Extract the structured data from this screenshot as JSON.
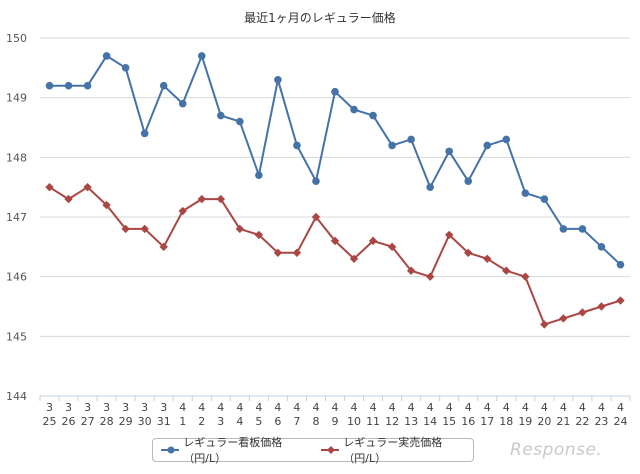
{
  "chart_data": {
    "type": "line",
    "title": "最近1ヶ月のレギュラー価格",
    "categories": [
      [
        "3",
        "25"
      ],
      [
        "3",
        "26"
      ],
      [
        "3",
        "27"
      ],
      [
        "3",
        "28"
      ],
      [
        "3",
        "29"
      ],
      [
        "3",
        "30"
      ],
      [
        "3",
        "31"
      ],
      [
        "4",
        "1"
      ],
      [
        "4",
        "2"
      ],
      [
        "4",
        "3"
      ],
      [
        "4",
        "4"
      ],
      [
        "4",
        "5"
      ],
      [
        "4",
        "6"
      ],
      [
        "4",
        "7"
      ],
      [
        "4",
        "8"
      ],
      [
        "4",
        "9"
      ],
      [
        "4",
        "10"
      ],
      [
        "4",
        "11"
      ],
      [
        "4",
        "12"
      ],
      [
        "4",
        "13"
      ],
      [
        "4",
        "14"
      ],
      [
        "4",
        "15"
      ],
      [
        "4",
        "16"
      ],
      [
        "4",
        "17"
      ],
      [
        "4",
        "18"
      ],
      [
        "4",
        "19"
      ],
      [
        "4",
        "20"
      ],
      [
        "4",
        "21"
      ],
      [
        "4",
        "22"
      ],
      [
        "4",
        "23"
      ],
      [
        "4",
        "24"
      ]
    ],
    "yticks": [
      "150",
      "149",
      "148",
      "147",
      "146",
      "145",
      "144"
    ],
    "ylim": [
      144,
      150
    ],
    "grid": true,
    "legend_position": "bottom",
    "series": [
      {
        "name": "レギュラー看板価格（円/L）",
        "color": "#4572a7",
        "marker": "circle",
        "values": [
          149.2,
          149.2,
          149.2,
          149.7,
          149.5,
          148.4,
          149.2,
          148.9,
          149.7,
          148.7,
          148.6,
          147.7,
          149.3,
          148.2,
          147.6,
          149.1,
          148.8,
          148.7,
          148.2,
          148.3,
          147.5,
          148.1,
          147.6,
          148.2,
          148.3,
          147.4,
          147.3,
          146.8,
          146.8,
          146.5,
          146.2
        ]
      },
      {
        "name": "レギュラー実売価格（円/L）",
        "color": "#aa4643",
        "marker": "diamond",
        "values": [
          147.5,
          147.3,
          147.5,
          147.2,
          146.8,
          146.8,
          146.5,
          147.1,
          147.3,
          147.3,
          146.8,
          146.7,
          146.4,
          146.4,
          147.0,
          146.6,
          146.3,
          146.6,
          146.5,
          146.1,
          146.0,
          146.7,
          146.4,
          146.3,
          146.1,
          146.0,
          145.2,
          145.3,
          145.4,
          145.5,
          145.6
        ]
      }
    ]
  },
  "watermark": "Response."
}
